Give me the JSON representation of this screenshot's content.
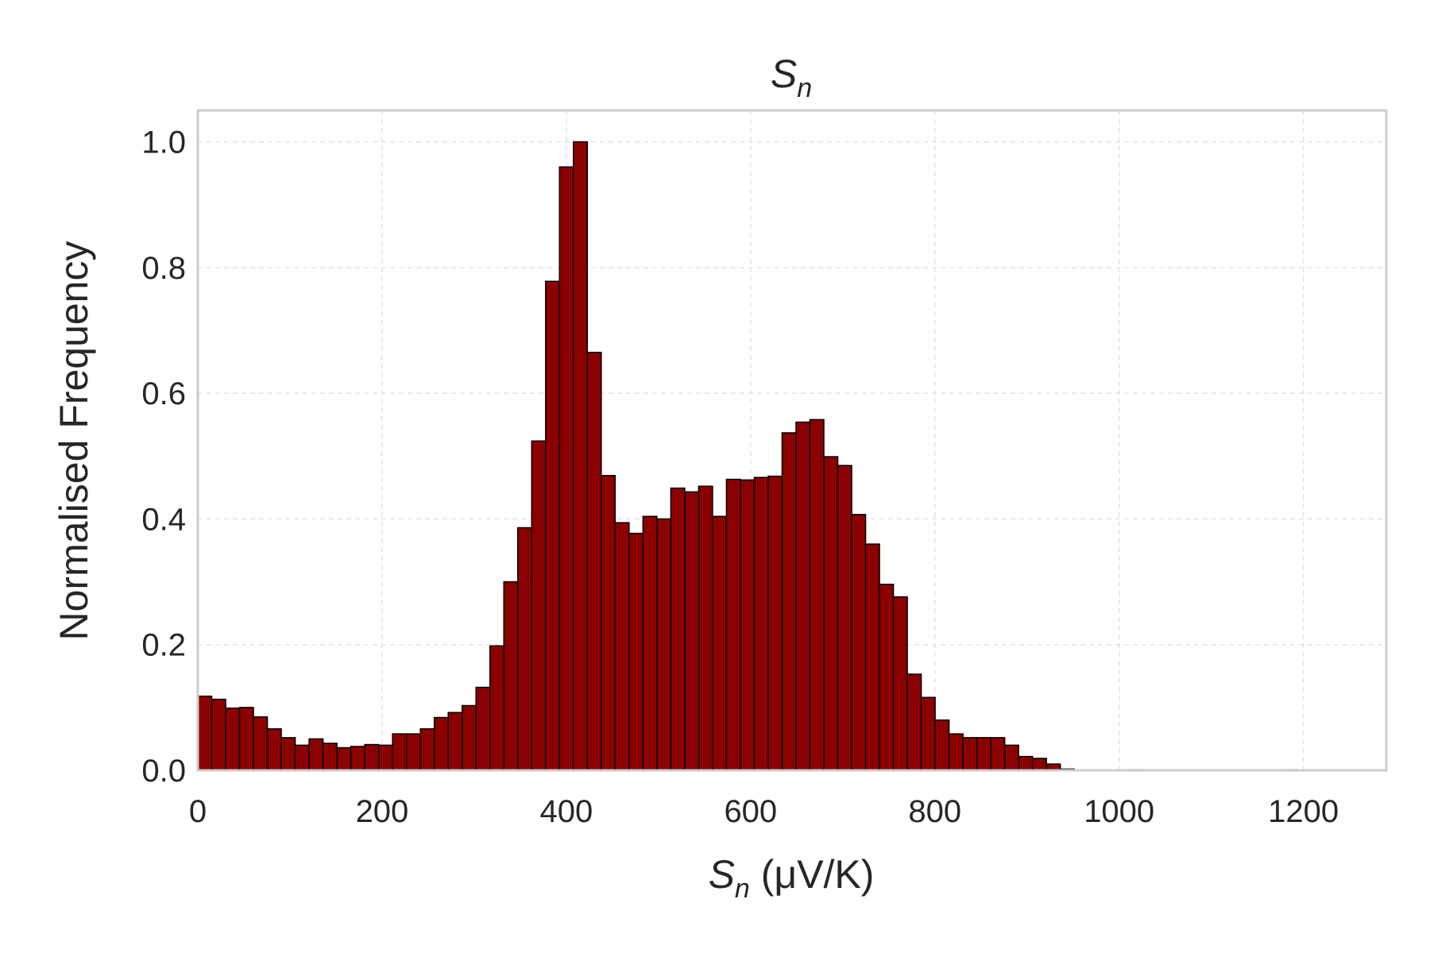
{
  "chart_data": {
    "type": "bar",
    "title": "S",
    "title_subscript": "n",
    "xlabel": "S",
    "xlabel_subscript": "n",
    "xlabel_suffix": " (μV/K)",
    "ylabel": "Normalised Frequency",
    "xlim": [
      0,
      1290
    ],
    "ylim": [
      0,
      1.05
    ],
    "bin_start": 0,
    "bin_width": 15.1,
    "bar_color": "#8b0000",
    "edge_color": "#000000",
    "grid": true,
    "xticks": [
      0,
      200,
      400,
      600,
      800,
      1000,
      1200
    ],
    "xtick_labels": [
      "0",
      "200",
      "400",
      "600",
      "800",
      "1000",
      "1200"
    ],
    "yticks": [
      0.0,
      0.2,
      0.4,
      0.6,
      0.8,
      1.0
    ],
    "ytick_labels": [
      "0.0",
      "0.2",
      "0.4",
      "0.6",
      "0.8",
      "1.0"
    ],
    "values": [
      0.118,
      0.113,
      0.099,
      0.1,
      0.085,
      0.066,
      0.052,
      0.04,
      0.05,
      0.043,
      0.036,
      0.038,
      0.041,
      0.04,
      0.058,
      0.058,
      0.066,
      0.084,
      0.092,
      0.103,
      0.132,
      0.198,
      0.3,
      0.386,
      0.524,
      0.778,
      0.96,
      1.0,
      0.665,
      0.469,
      0.394,
      0.377,
      0.404,
      0.4,
      0.449,
      0.443,
      0.452,
      0.404,
      0.463,
      0.462,
      0.466,
      0.468,
      0.537,
      0.554,
      0.558,
      0.499,
      0.485,
      0.407,
      0.36,
      0.296,
      0.276,
      0.153,
      0.116,
      0.08,
      0.058,
      0.052,
      0.052,
      0.052,
      0.04,
      0.022,
      0.019,
      0.01,
      0.002,
      0.0,
      0.0,
      0.0,
      0.0,
      0.001,
      0.0,
      0.0,
      0.0,
      0.0,
      0.0,
      0.0,
      0.0,
      0.0,
      0.0,
      0.0,
      0.001,
      0.0,
      0.0,
      0.0
    ]
  }
}
